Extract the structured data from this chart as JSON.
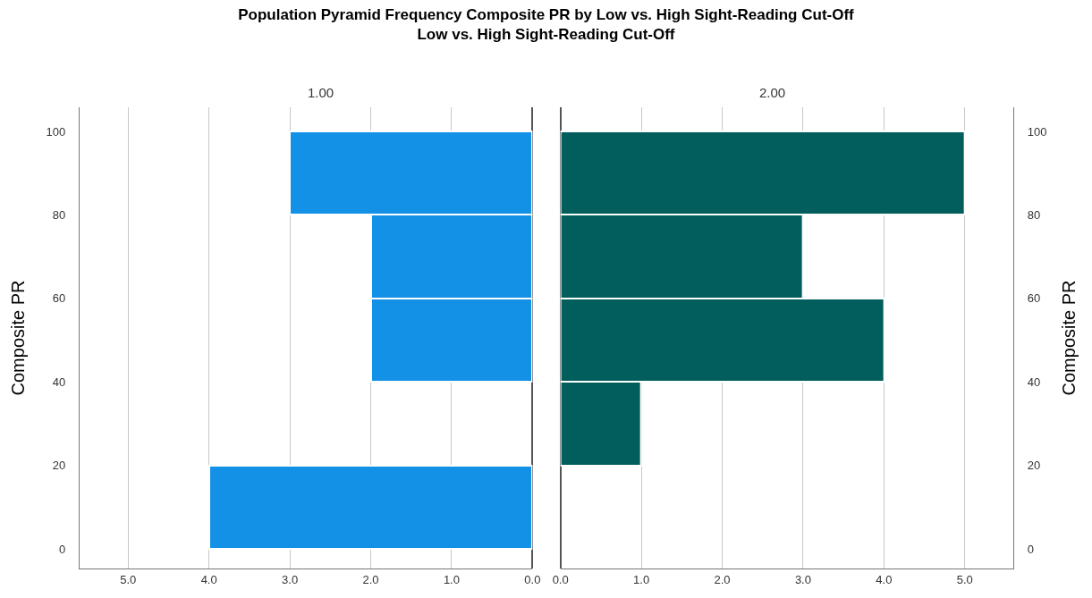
{
  "chart_data": [
    {
      "type": "histogram",
      "orientation": "horizontal",
      "title": "Population Pyramid Frequency Composite PR by Low vs. High Sight-Reading Cut-Off",
      "subtitle": "Low vs. High Sight-Reading Cut-Off",
      "annotations": [
        "1.00"
      ],
      "ylabel": "Composite PR",
      "bins": [
        0,
        20,
        40,
        60,
        80,
        100
      ],
      "values": [
        4,
        0,
        2,
        2,
        3
      ],
      "color": "#1391e6",
      "xlim": [
        5.6,
        0
      ],
      "xticks": [
        {
          "value": 5,
          "label": "5.0"
        },
        {
          "value": 4,
          "label": "4.0"
        },
        {
          "value": 3,
          "label": "3.0"
        },
        {
          "value": 2,
          "label": "2.0"
        },
        {
          "value": 1,
          "label": "1.0"
        },
        {
          "value": 0,
          "label": "0.0"
        }
      ],
      "ylim": [
        -4.7,
        105.8
      ],
      "yticks": [
        0,
        20,
        40,
        60,
        80,
        100
      ],
      "grid": "x"
    },
    {
      "type": "histogram",
      "orientation": "horizontal",
      "annotations": [
        "2.00"
      ],
      "ylabel": "Composite PR",
      "bins": [
        0,
        20,
        40,
        60,
        80,
        100
      ],
      "values": [
        0,
        1,
        4,
        3,
        5
      ],
      "color": "#025e5d",
      "xlim": [
        0,
        5.6
      ],
      "xticks": [
        {
          "value": 0,
          "label": "0.0"
        },
        {
          "value": 1,
          "label": "1.0"
        },
        {
          "value": 2,
          "label": "2.0"
        },
        {
          "value": 3,
          "label": "3.0"
        },
        {
          "value": 4,
          "label": "4.0"
        },
        {
          "value": 5,
          "label": "5.0"
        }
      ],
      "ylim": [
        -4.7,
        105.8
      ],
      "yticks": [
        0,
        20,
        40,
        60,
        80,
        100
      ],
      "grid": "x"
    }
  ]
}
